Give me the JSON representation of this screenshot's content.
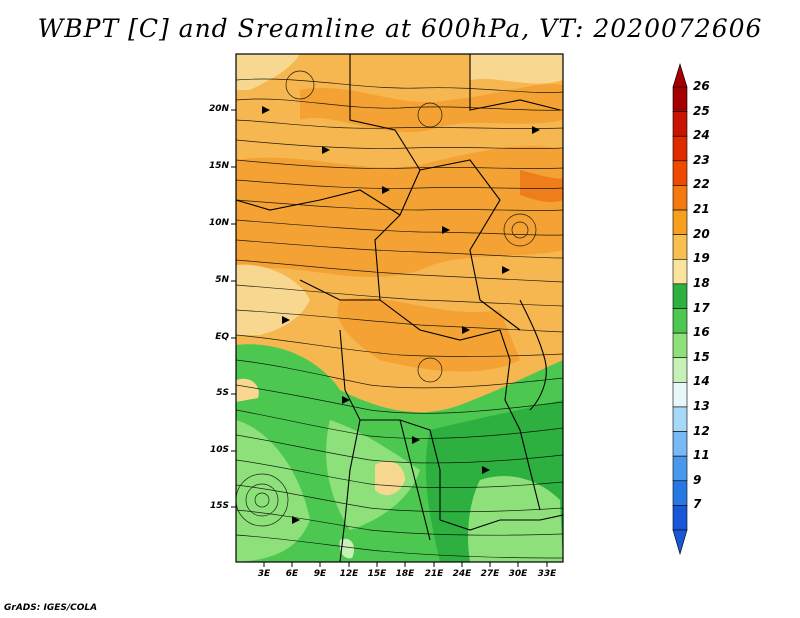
{
  "title": "WBPT [C] and Sreamline at 600hPa, VT: 2020072606",
  "credit": "GrADS: IGES/COLA",
  "map": {
    "lat_labels": [
      "20N",
      "15N",
      "10N",
      "5N",
      "EQ",
      "5S",
      "10S",
      "15S"
    ],
    "lon_labels": [
      "3E",
      "6E",
      "9E",
      "12E",
      "15E",
      "18E",
      "21E",
      "24E",
      "27E",
      "30E",
      "33E"
    ]
  },
  "colorbar": {
    "labels": [
      "26",
      "25",
      "24",
      "23",
      "22",
      "21",
      "20",
      "19",
      "18",
      "17",
      "16",
      "15",
      "14",
      "13",
      "12",
      "11",
      "9",
      "7"
    ],
    "colors": [
      "#a50000",
      "#c81400",
      "#e02a00",
      "#f04a00",
      "#f47a10",
      "#f7a020",
      "#f8c050",
      "#f8e49c",
      "#2eb040",
      "#4cc850",
      "#8ee07a",
      "#c6f0b6",
      "#e8f8fa",
      "#a8d8f8",
      "#78b8f4",
      "#4898ec",
      "#2878e4",
      "#1858d8"
    ]
  }
}
